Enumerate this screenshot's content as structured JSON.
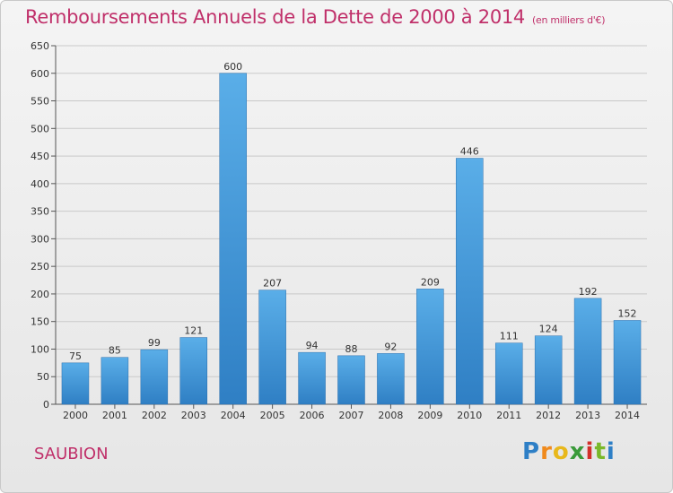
{
  "header": {
    "title": "Remboursements Annuels de la Dette de 2000 à 2014",
    "unit": "(en milliers d'€)"
  },
  "footer": {
    "commune": "SAUBION",
    "logo_letters": [
      "P",
      "r",
      "o",
      "x",
      "i",
      "t",
      "i"
    ]
  },
  "colors": {
    "title": "#c0306a",
    "bar_top": "#5aaee8",
    "bar_bottom": "#2f7fc4",
    "grid": "#c9c9c9",
    "logo": [
      "#2e7fc6",
      "#f08a1c",
      "#e8b81c",
      "#3a9a3a",
      "#d2302a",
      "#7ab82a",
      "#2e7fc6"
    ]
  },
  "chart_data": {
    "type": "bar",
    "title": "Remboursements Annuels de la Dette de 2000 à 2014",
    "unit": "en milliers d'€",
    "categories": [
      "2000",
      "2001",
      "2002",
      "2003",
      "2004",
      "2005",
      "2006",
      "2007",
      "2008",
      "2009",
      "2010",
      "2011",
      "2012",
      "2013",
      "2014"
    ],
    "values": [
      75,
      85,
      99,
      121,
      600,
      207,
      94,
      88,
      92,
      209,
      446,
      111,
      124,
      192,
      152
    ],
    "y_ticks": [
      0,
      50,
      100,
      150,
      200,
      250,
      300,
      350,
      400,
      450,
      500,
      550,
      600,
      650
    ],
    "ylim": [
      0,
      650
    ],
    "grid": true,
    "xlabel": "",
    "ylabel": ""
  }
}
